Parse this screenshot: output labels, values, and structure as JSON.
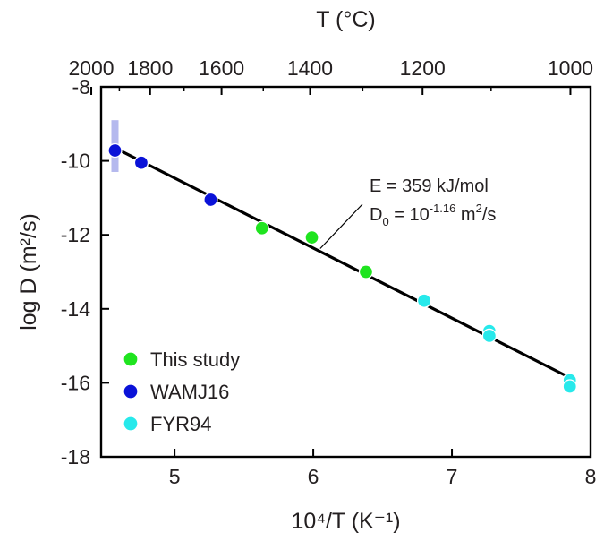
{
  "chart_data": {
    "type": "scatter",
    "xlabel": "10⁴/T (K⁻¹)",
    "ylabel": "log D (m²/s)",
    "top_xlabel": "T (°C)",
    "xlim": [
      4.47,
      8.0
    ],
    "ylim": [
      -18,
      -8
    ],
    "x_ticks": [
      5,
      6,
      7,
      8
    ],
    "x_tick_labels": [
      "5",
      "6",
      "7",
      "8"
    ],
    "y_ticks": [
      -18,
      -16,
      -14,
      -12,
      -10,
      -8
    ],
    "y_tick_labels": [
      "-18",
      "-16",
      "-14",
      "-12",
      "-10",
      "-8"
    ],
    "top_ticks_celsius": [
      2000,
      1800,
      1600,
      1400,
      1200,
      1000
    ],
    "top_tick_labels": [
      "2000",
      "1800",
      "1600",
      "1400",
      "1200",
      "1000"
    ],
    "top_minor_ticks_celsius": [
      1900,
      1700,
      1500,
      1300,
      1100
    ],
    "grid": false,
    "legend_position": "bottom-left",
    "series": [
      {
        "name": "This study",
        "color": "#1fe41f",
        "x": [
          5.63,
          5.99,
          6.38
        ],
        "y": [
          -11.82,
          -12.07,
          -13.0
        ]
      },
      {
        "name": "WAMJ16",
        "color": "#0a12d8",
        "x": [
          4.57,
          4.76,
          5.26
        ],
        "y": [
          -9.72,
          -10.05,
          -11.05
        ]
      },
      {
        "name": "FYR94",
        "color": "#27e9eb",
        "x": [
          6.8,
          7.27,
          7.27,
          7.85,
          7.85
        ],
        "y": [
          -13.78,
          -14.6,
          -14.73,
          -15.93,
          -16.1
        ]
      }
    ],
    "error_bar": {
      "x": 4.57,
      "y_low": -10.3,
      "y_high": -8.9,
      "color": "#b5b9ee"
    },
    "fit_line": {
      "x": [
        4.57,
        7.85
      ],
      "y": [
        -9.65,
        -15.86
      ],
      "color": "#000000"
    },
    "annotation": {
      "line1": "E = 359 kJ/mol",
      "d0_main": "D",
      "d0_sub": "0",
      "d0_eq": " = 10",
      "d0_exp": "-1.16",
      "d0_unit": " m",
      "d0_unit_sup": "2",
      "d0_unit_tail": "/s",
      "pointer_x": 6.05,
      "pointer_y": -12.37
    }
  }
}
